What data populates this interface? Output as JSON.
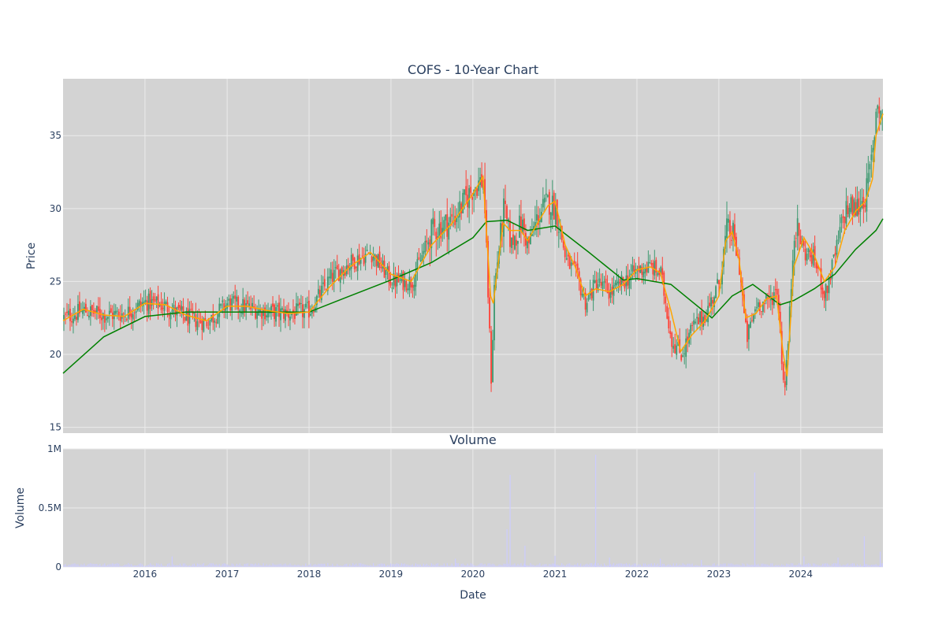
{
  "chart_data": [
    {
      "type": "candlestick",
      "title": "COFS - 10-Year Chart",
      "ylabel": "Price",
      "xlim": [
        "2015-01-01",
        "2025-01-01"
      ],
      "ylim": [
        14.6,
        38.9
      ],
      "yticks": [
        15,
        20,
        25,
        30,
        35
      ],
      "grid": true,
      "colors": {
        "plot_bg": "#d3d3d3",
        "grid": "#ebebeb",
        "up": "#3d9970",
        "down": "#ff4136",
        "ma_short": "#ffa500",
        "ma_long": "#008000"
      },
      "close_series": {
        "x": [
          "2015-01-01",
          "2015-04-01",
          "2015-07-01",
          "2015-10-01",
          "2016-01-01",
          "2016-04-01",
          "2016-07-01",
          "2016-10-01",
          "2017-01-01",
          "2017-04-01",
          "2017-07-01",
          "2017-10-01",
          "2018-01-01",
          "2018-04-01",
          "2018-07-01",
          "2018-10-01",
          "2019-01-01",
          "2019-04-01",
          "2019-07-01",
          "2019-10-01",
          "2020-01-01",
          "2020-02-15",
          "2020-03-20",
          "2020-04-01",
          "2020-05-15",
          "2020-06-15",
          "2020-08-01",
          "2020-09-01",
          "2020-10-15",
          "2020-12-01",
          "2021-01-01",
          "2021-02-15",
          "2021-04-01",
          "2021-05-15",
          "2021-07-01",
          "2021-09-01",
          "2021-11-01",
          "2022-01-01",
          "2022-03-01",
          "2022-04-15",
          "2022-06-01",
          "2022-07-15",
          "2022-09-01",
          "2022-11-01",
          "2023-01-01",
          "2023-02-01",
          "2023-03-01",
          "2023-04-01",
          "2023-05-01",
          "2023-06-15",
          "2023-08-01",
          "2023-09-15",
          "2023-10-15",
          "2023-11-01",
          "2023-12-01",
          "2024-01-15",
          "2024-03-01",
          "2024-04-15",
          "2024-06-01",
          "2024-07-15",
          "2024-09-01",
          "2024-10-15",
          "2024-11-15",
          "2024-12-01",
          "2025-01-01"
        ],
        "y": [
          22.5,
          23.0,
          22.7,
          22.8,
          23.6,
          23.3,
          22.5,
          22.2,
          23.5,
          23.2,
          22.9,
          22.8,
          23.0,
          25.2,
          26.3,
          27.0,
          25.0,
          25.0,
          28.5,
          29.2,
          31.5,
          32.0,
          18.0,
          24.5,
          30.0,
          27.5,
          29.0,
          27.5,
          29.5,
          30.5,
          30.0,
          26.5,
          25.5,
          23.5,
          25.0,
          24.2,
          25.0,
          25.8,
          26.0,
          25.5,
          21.0,
          20.0,
          21.8,
          22.8,
          25.0,
          28.5,
          28.2,
          25.8,
          21.0,
          23.5,
          23.5,
          24.5,
          17.5,
          20.5,
          29.0,
          27.0,
          26.5,
          24.0,
          27.0,
          30.0,
          30.0,
          31.0,
          34.0,
          37.5,
          36.0
        ]
      },
      "ma_short": {
        "x": [
          "2015-01-01",
          "2015-04-01",
          "2015-07-01",
          "2015-10-01",
          "2016-01-01",
          "2016-04-01",
          "2016-07-01",
          "2016-10-01",
          "2017-01-01",
          "2017-04-01",
          "2017-07-01",
          "2017-10-01",
          "2018-01-01",
          "2018-04-01",
          "2018-07-01",
          "2018-10-01",
          "2019-01-01",
          "2019-04-01",
          "2019-07-01",
          "2019-10-01",
          "2020-01-01",
          "2020-02-15",
          "2020-03-20",
          "2020-04-01",
          "2020-05-15",
          "2020-06-15",
          "2020-08-01",
          "2020-09-01",
          "2020-10-15",
          "2020-12-01",
          "2021-01-01",
          "2021-02-15",
          "2021-04-01",
          "2021-05-15",
          "2021-07-01",
          "2021-09-01",
          "2021-11-01",
          "2022-01-01",
          "2022-03-01",
          "2022-04-15",
          "2022-06-01",
          "2022-07-15",
          "2022-09-01",
          "2022-11-01",
          "2023-01-01",
          "2023-02-01",
          "2023-03-01",
          "2023-04-01",
          "2023-05-01",
          "2023-06-15",
          "2023-08-01",
          "2023-09-15",
          "2023-10-15",
          "2023-11-01",
          "2023-12-01",
          "2024-01-15",
          "2024-03-01",
          "2024-04-15",
          "2024-06-01",
          "2024-07-15",
          "2024-09-01",
          "2024-10-15",
          "2024-11-15",
          "2024-12-01",
          "2025-01-01"
        ],
        "y": [
          22.3,
          23.1,
          22.7,
          22.6,
          23.5,
          23.4,
          22.7,
          22.3,
          23.3,
          23.3,
          23.0,
          22.8,
          22.9,
          24.6,
          26.0,
          27.0,
          25.5,
          25.0,
          27.5,
          29.0,
          31.0,
          32.2,
          24.0,
          23.5,
          29.0,
          28.5,
          28.5,
          27.8,
          29.0,
          30.2,
          30.5,
          27.5,
          26.0,
          24.0,
          24.5,
          24.3,
          24.8,
          25.8,
          26.0,
          25.6,
          23.0,
          20.2,
          21.3,
          22.3,
          24.0,
          27.8,
          28.4,
          26.5,
          22.5,
          22.8,
          23.8,
          24.0,
          20.0,
          18.5,
          26.0,
          28.0,
          26.8,
          25.0,
          26.0,
          28.5,
          29.8,
          30.5,
          32.0,
          35.0,
          36.5
        ]
      },
      "ma_long": {
        "x": [
          "2015-01-01",
          "2015-07-01",
          "2016-01-01",
          "2016-07-01",
          "2017-01-01",
          "2017-07-01",
          "2018-01-01",
          "2018-07-01",
          "2019-01-01",
          "2019-07-01",
          "2020-01-01",
          "2020-03-01",
          "2020-06-01",
          "2020-09-01",
          "2021-01-01",
          "2021-06-01",
          "2021-11-01",
          "2022-01-01",
          "2022-06-01",
          "2022-12-01",
          "2023-03-01",
          "2023-06-01",
          "2023-10-01",
          "2023-12-01",
          "2024-03-01",
          "2024-06-01",
          "2024-09-01",
          "2024-12-01",
          "2025-01-01"
        ],
        "y": [
          18.7,
          21.2,
          22.6,
          22.9,
          22.9,
          22.9,
          22.9,
          24.0,
          25.1,
          26.3,
          28.0,
          29.1,
          29.2,
          28.5,
          28.8,
          27.0,
          25.1,
          25.2,
          24.8,
          22.5,
          24.0,
          24.8,
          23.4,
          23.7,
          24.5,
          25.5,
          27.2,
          28.5,
          29.3
        ]
      }
    },
    {
      "type": "bar",
      "title": "Volume",
      "xlabel": "Date",
      "ylabel": "Volume",
      "ylim": [
        0,
        1000000
      ],
      "yticks": [
        0,
        500000,
        1000000
      ],
      "ytick_labels": [
        "0",
        "0.5M",
        "1M"
      ],
      "xticks": [
        "2016-01-01",
        "2017-01-01",
        "2018-01-01",
        "2019-01-01",
        "2020-01-01",
        "2021-01-01",
        "2022-01-01",
        "2023-01-01",
        "2024-01-01"
      ],
      "xtick_labels": [
        "2016",
        "2017",
        "2018",
        "2019",
        "2020",
        "2021",
        "2022",
        "2023",
        "2024"
      ],
      "bar_color": "#ccccff",
      "spikes": {
        "x": [
          "2016-05-01",
          "2019-10-15",
          "2020-06-01",
          "2020-06-15",
          "2020-08-20",
          "2021-01-01",
          "2021-07-01",
          "2021-09-01",
          "2022-04-15",
          "2022-10-15",
          "2023-06-10",
          "2024-01-15",
          "2024-06-15",
          "2024-10-10",
          "2024-12-20"
        ],
        "values": [
          90000,
          70000,
          320000,
          780000,
          180000,
          95000,
          950000,
          80000,
          70000,
          60000,
          800000,
          90000,
          80000,
          260000,
          130000
        ]
      }
    }
  ]
}
